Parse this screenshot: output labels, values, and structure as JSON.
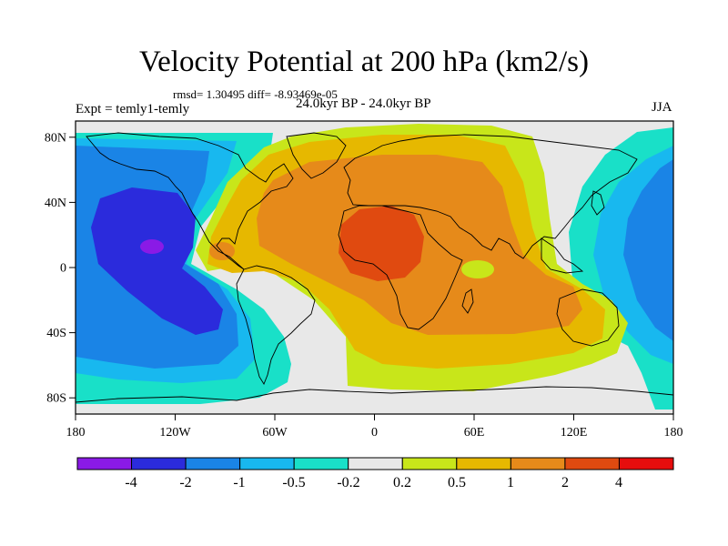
{
  "title": "Velocity Potential at 200 hPa (km2/s)",
  "stats": "rmsd= 1.30495 diff= -8.93469e-05",
  "period": "24.0kyr BP - 24.0kyr BP",
  "experiment": "Expt = temly1-temly",
  "season": "JJA",
  "map": {
    "projection": "cylindrical-equidistant",
    "lon_range": [
      -180,
      180
    ],
    "lat_range": [
      -90,
      90
    ],
    "x_ticks": [
      "180",
      "120W",
      "60W",
      "0",
      "60E",
      "120E",
      "180"
    ],
    "y_ticks": [
      "80N",
      "40N",
      "0",
      "40S",
      "80S"
    ],
    "fill_levels": [
      {
        "range": "< -4",
        "color": "#8a1ae6"
      },
      {
        "range": "-4 to -2",
        "color": "#2b2bdc"
      },
      {
        "range": "-2 to -1",
        "color": "#1a84e6"
      },
      {
        "range": "-1 to -0.5",
        "color": "#18b8ef"
      },
      {
        "range": "-0.5 to -0.2",
        "color": "#19e0c8"
      },
      {
        "range": "-0.2 to 0.2",
        "color": "#e8e8e8"
      },
      {
        "range": "0.2 to 0.5",
        "color": "#c8e61a"
      },
      {
        "range": "0.5 to 1",
        "color": "#e6b800"
      },
      {
        "range": "1 to 2",
        "color": "#e68a1a"
      },
      {
        "range": "2 to 4",
        "color": "#e04a10"
      },
      {
        "range": "> 4",
        "color": "#e60d0d"
      }
    ]
  },
  "colorbar": {
    "colors": [
      "#8a1ae6",
      "#2b2bdc",
      "#1a84e6",
      "#18b8ef",
      "#19e0c8",
      "#e8e8e8",
      "#c8e61a",
      "#e6b800",
      "#e68a1a",
      "#e04a10",
      "#e60d0d"
    ],
    "labels": [
      "-4",
      "-2",
      "-1",
      "-0.5",
      "-0.2",
      "0.2",
      "0.5",
      "1",
      "2",
      "4"
    ]
  }
}
